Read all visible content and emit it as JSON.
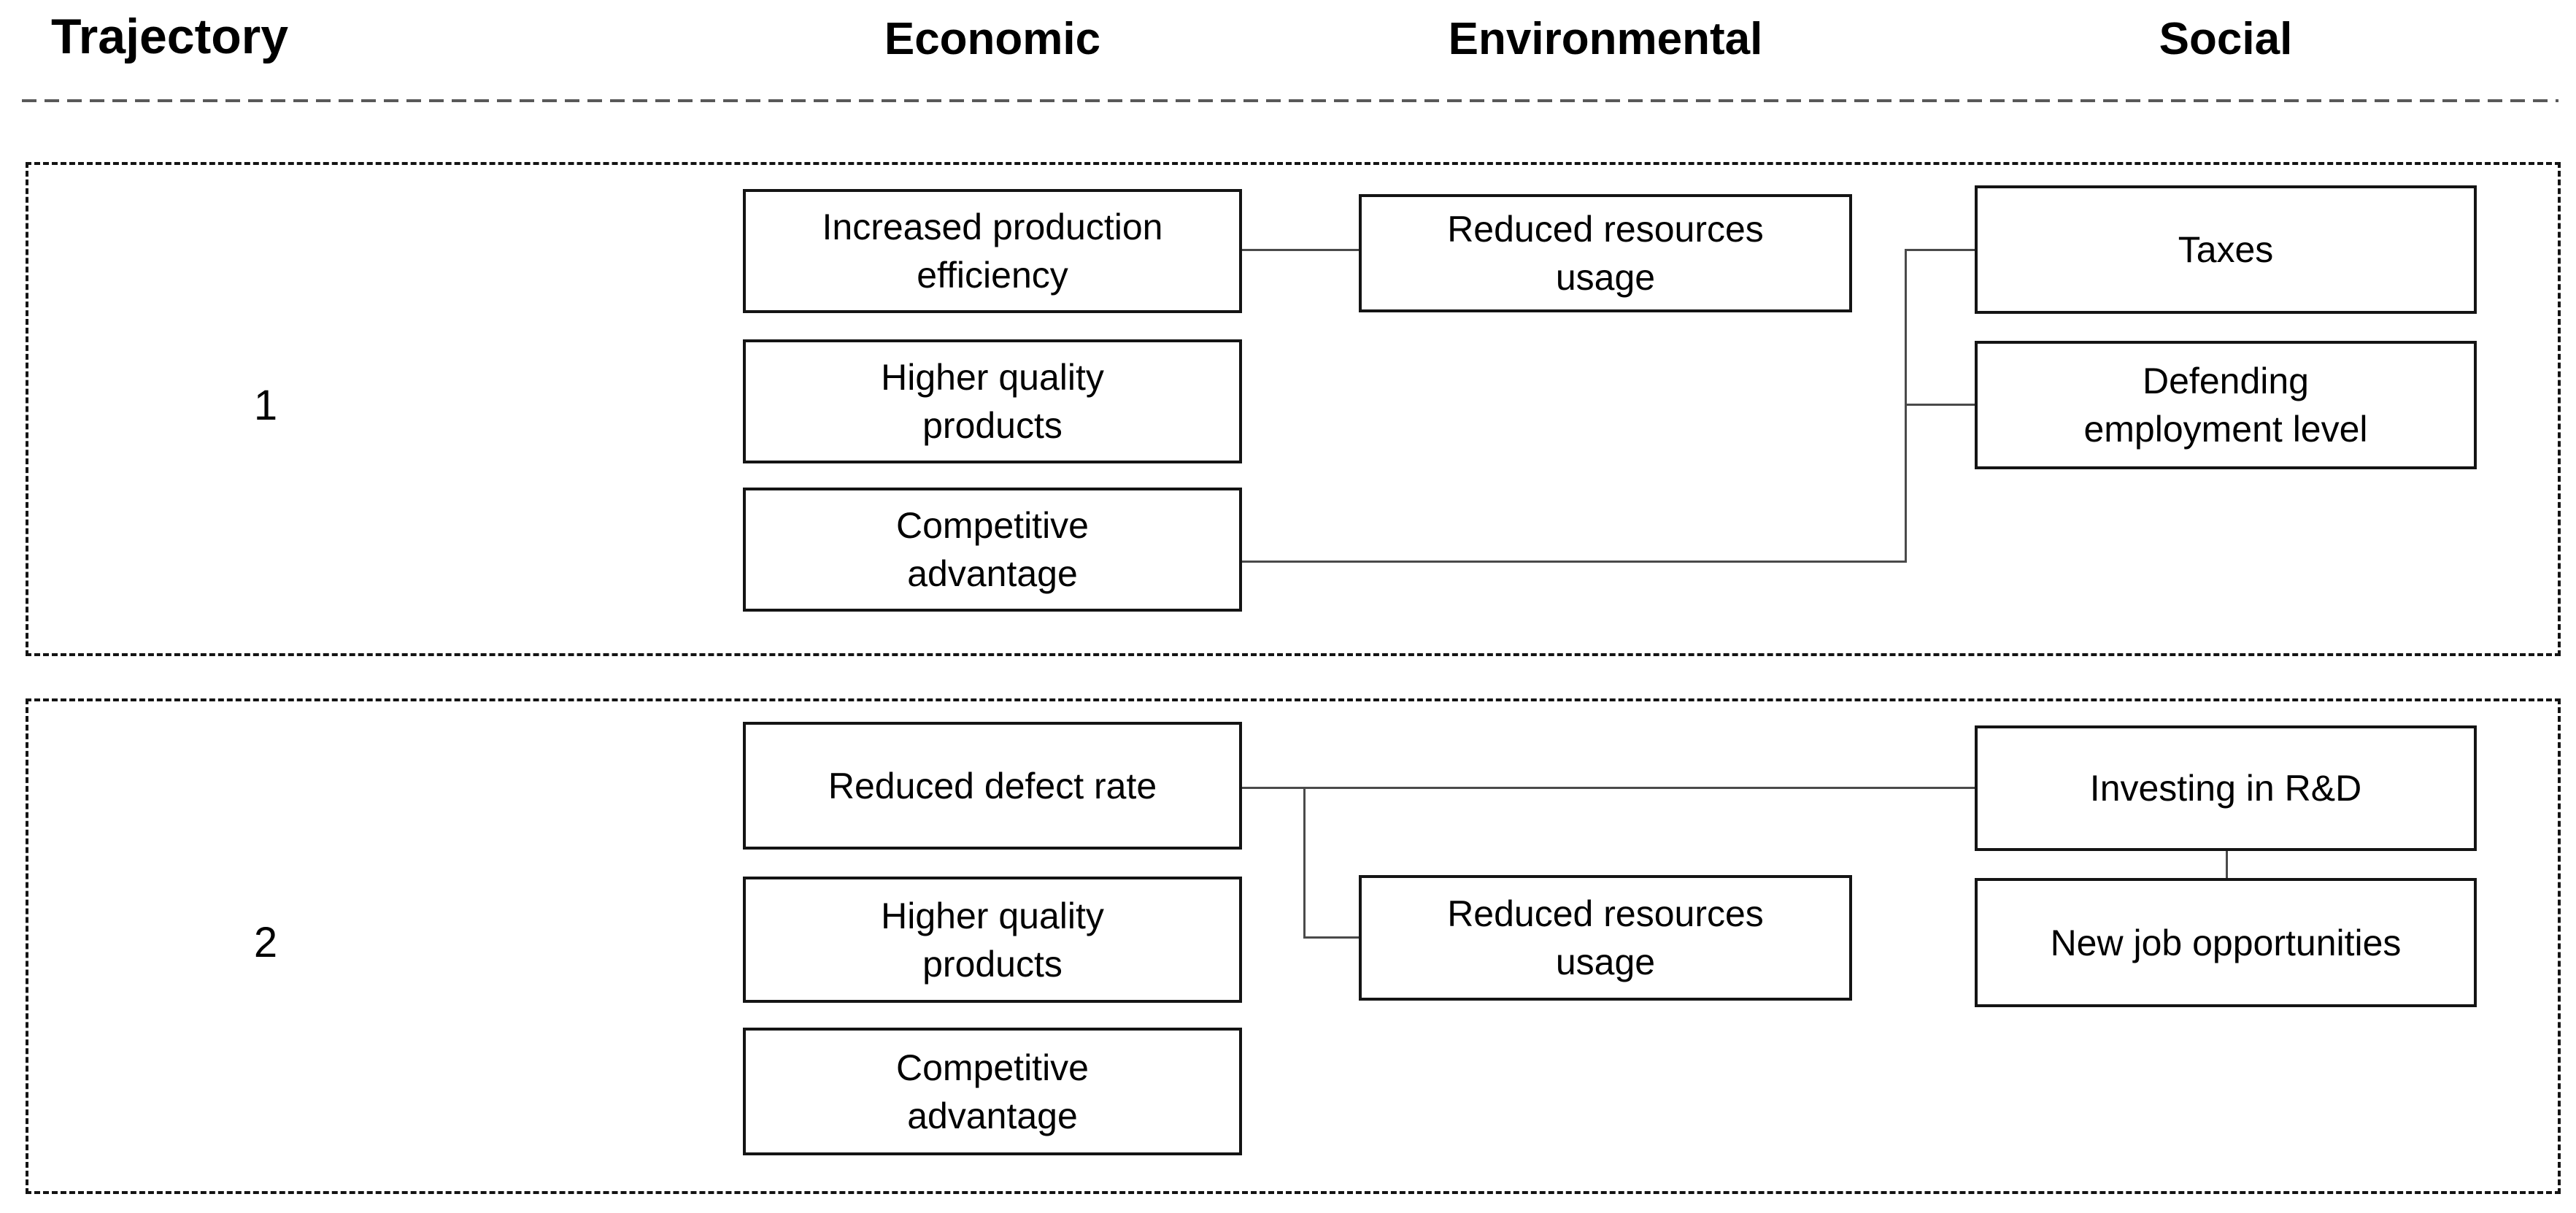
{
  "header": {
    "trajectory_label": "Trajectory",
    "columns": [
      {
        "label": "Economic"
      },
      {
        "label": "Environmental"
      },
      {
        "label": "Social"
      }
    ]
  },
  "trajectories": [
    {
      "number": "1",
      "economic": [
        "Increased production\nefficiency",
        "Higher quality\nproducts",
        "Competitive\nadvantage"
      ],
      "environmental": [
        "Reduced resources\nusage"
      ],
      "social": [
        "Taxes",
        "Defending\nemployment level"
      ]
    },
    {
      "number": "2",
      "economic": [
        "Reduced defect rate",
        "Higher quality\nproducts",
        "Competitive\nadvantage"
      ],
      "environmental": [
        "Reduced resources\nusage"
      ],
      "social": [
        "Investing in R&D",
        "New job opportunities"
      ]
    }
  ],
  "colors": {
    "background": "#ffffff",
    "text": "#000000",
    "box_border": "#141414",
    "container_border": "#141414",
    "connector_line": "#4a4a4a",
    "separator_line": "#595959"
  }
}
